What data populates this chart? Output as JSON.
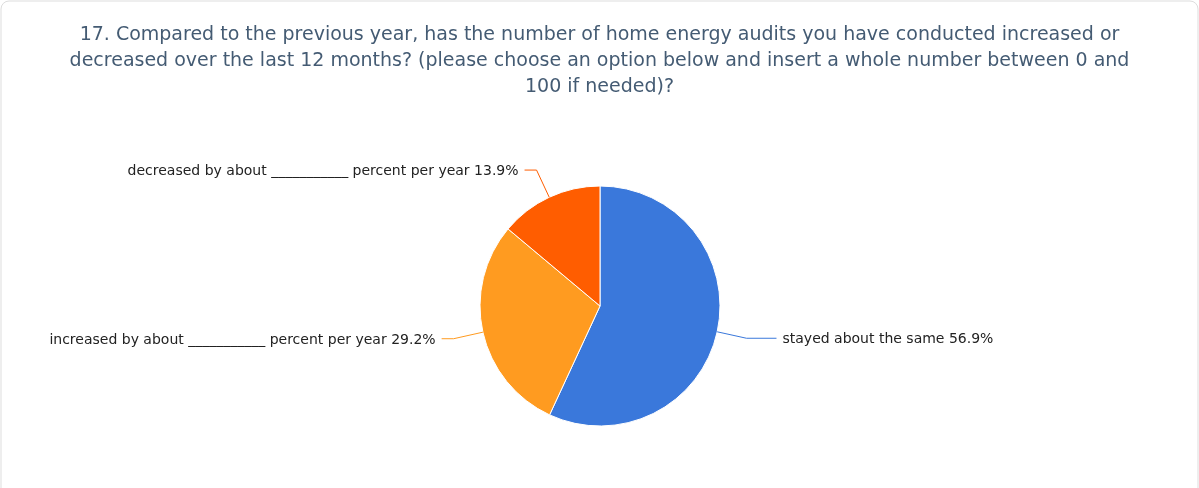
{
  "chart_data": {
    "type": "pie",
    "title": "17. Compared to the previous year, has the number of home energy audits you have conducted increased or decreased over the last 12 months? (please choose an option below and insert a whole number between 0 and 100 if needed)?",
    "categories": [
      "stayed about the same",
      "increased by about ___________ percent per year",
      "decreased by about ___________ percent per year"
    ],
    "values": [
      56.9,
      29.2,
      13.9
    ],
    "colors": [
      "#3a78db",
      "#ff9b20",
      "#ff5d00"
    ],
    "value_labels": [
      "56.9%",
      "29.2%",
      "13.9%"
    ]
  }
}
